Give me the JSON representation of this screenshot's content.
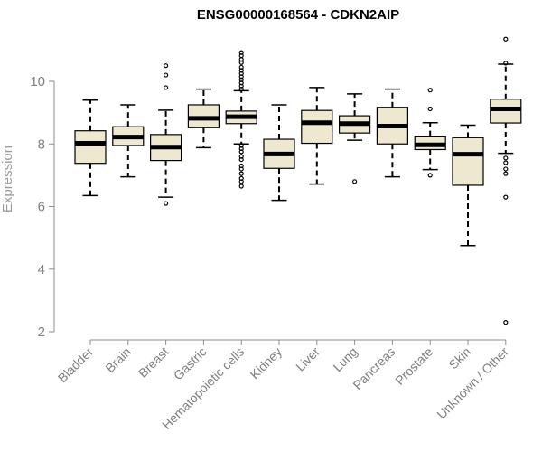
{
  "chart_data": {
    "type": "box",
    "title": "ENSG00000168564 - CDKN2AIP",
    "ylabel": "Expression",
    "xlabel": "",
    "ylim": [
      2,
      11.6
    ],
    "yticks": [
      2,
      4,
      6,
      8,
      10
    ],
    "box_fill": "#efe8d0",
    "box_stroke": "#000000",
    "axis_color": "#8c8c8c",
    "categories": [
      "Bladder",
      "Brain",
      "Breast",
      "Gastric",
      "Hematopoietic cells",
      "Kidney",
      "Liver",
      "Lung",
      "Pancreas",
      "Prostate",
      "Skin",
      "Unknown / Other"
    ],
    "boxes": [
      {
        "category": "Bladder",
        "whisker_low": 6.35,
        "q1": 7.38,
        "median": 8.02,
        "q3": 8.42,
        "whisker_high": 9.4,
        "outliers": []
      },
      {
        "category": "Brain",
        "whisker_low": 6.95,
        "q1": 7.95,
        "median": 8.22,
        "q3": 8.55,
        "whisker_high": 9.25,
        "outliers": []
      },
      {
        "category": "Breast",
        "whisker_low": 6.3,
        "q1": 7.47,
        "median": 7.9,
        "q3": 8.3,
        "whisker_high": 9.08,
        "outliers": [
          6.1,
          9.8,
          10.2,
          10.5
        ]
      },
      {
        "category": "Gastric",
        "whisker_low": 7.88,
        "q1": 8.52,
        "median": 8.82,
        "q3": 9.25,
        "whisker_high": 9.75,
        "outliers": []
      },
      {
        "category": "Hematopoietic cells",
        "whisker_low": 8.0,
        "q1": 8.65,
        "median": 8.87,
        "q3": 9.05,
        "whisker_high": 9.7,
        "outliers": [
          6.65,
          6.8,
          6.9,
          7.05,
          7.2,
          7.3,
          7.5,
          7.6,
          7.75,
          7.85,
          7.95,
          9.75,
          9.85,
          9.95,
          10.05,
          10.15,
          10.25,
          10.35,
          10.45,
          10.6,
          10.7,
          10.82,
          10.92
        ]
      },
      {
        "category": "Kidney",
        "whisker_low": 6.2,
        "q1": 7.22,
        "median": 7.68,
        "q3": 8.15,
        "whisker_high": 9.25,
        "outliers": []
      },
      {
        "category": "Liver",
        "whisker_low": 6.72,
        "q1": 8.02,
        "median": 8.68,
        "q3": 9.07,
        "whisker_high": 9.8,
        "outliers": []
      },
      {
        "category": "Lung",
        "whisker_low": 8.12,
        "q1": 8.35,
        "median": 8.65,
        "q3": 8.9,
        "whisker_high": 9.6,
        "outliers": [
          6.8
        ]
      },
      {
        "category": "Pancreas",
        "whisker_low": 6.95,
        "q1": 8.0,
        "median": 8.57,
        "q3": 9.17,
        "whisker_high": 9.75,
        "outliers": []
      },
      {
        "category": "Prostate",
        "whisker_low": 7.18,
        "q1": 7.82,
        "median": 7.97,
        "q3": 8.25,
        "whisker_high": 8.68,
        "outliers": [
          7.0,
          9.12,
          9.72
        ]
      },
      {
        "category": "Skin",
        "whisker_low": 4.75,
        "q1": 6.68,
        "median": 7.67,
        "q3": 8.2,
        "whisker_high": 8.6,
        "outliers": []
      },
      {
        "category": "Unknown / Other",
        "whisker_low": 7.7,
        "q1": 8.67,
        "median": 9.12,
        "q3": 9.43,
        "whisker_high": 10.55,
        "outliers": [
          2.3,
          6.3,
          7.05,
          7.2,
          7.4,
          7.55,
          10.58,
          11.35
        ]
      }
    ]
  }
}
